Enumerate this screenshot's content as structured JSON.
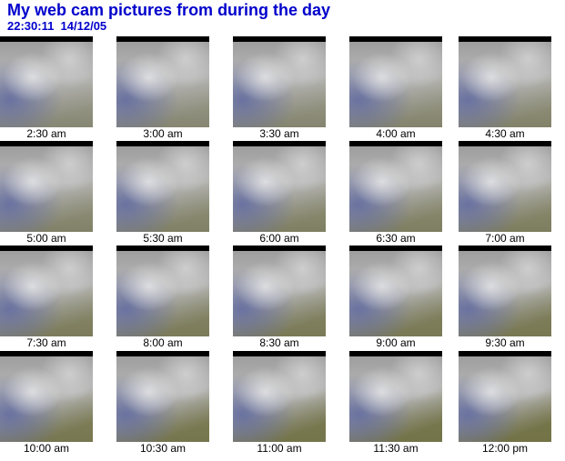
{
  "header": {
    "title": "My web cam pictures from during the day",
    "timestamp": "22:30:11  14/12/05"
  },
  "images": [
    {
      "caption": "2:30 am"
    },
    {
      "caption": "3:00 am"
    },
    {
      "caption": "3:30 am"
    },
    {
      "caption": "4:00 am"
    },
    {
      "caption": "4:30 am"
    },
    {
      "caption": "5:00 am"
    },
    {
      "caption": "5:30 am"
    },
    {
      "caption": "6:00 am"
    },
    {
      "caption": "6:30 am"
    },
    {
      "caption": "7:00 am"
    },
    {
      "caption": "7:30 am"
    },
    {
      "caption": "8:00 am"
    },
    {
      "caption": "8:30 am"
    },
    {
      "caption": "9:00 am"
    },
    {
      "caption": "9:30 am"
    },
    {
      "caption": "10:00 am"
    },
    {
      "caption": "10:30 am"
    },
    {
      "caption": "11:00 am"
    },
    {
      "caption": "11:30 am"
    },
    {
      "caption": "12:00 pm"
    }
  ]
}
